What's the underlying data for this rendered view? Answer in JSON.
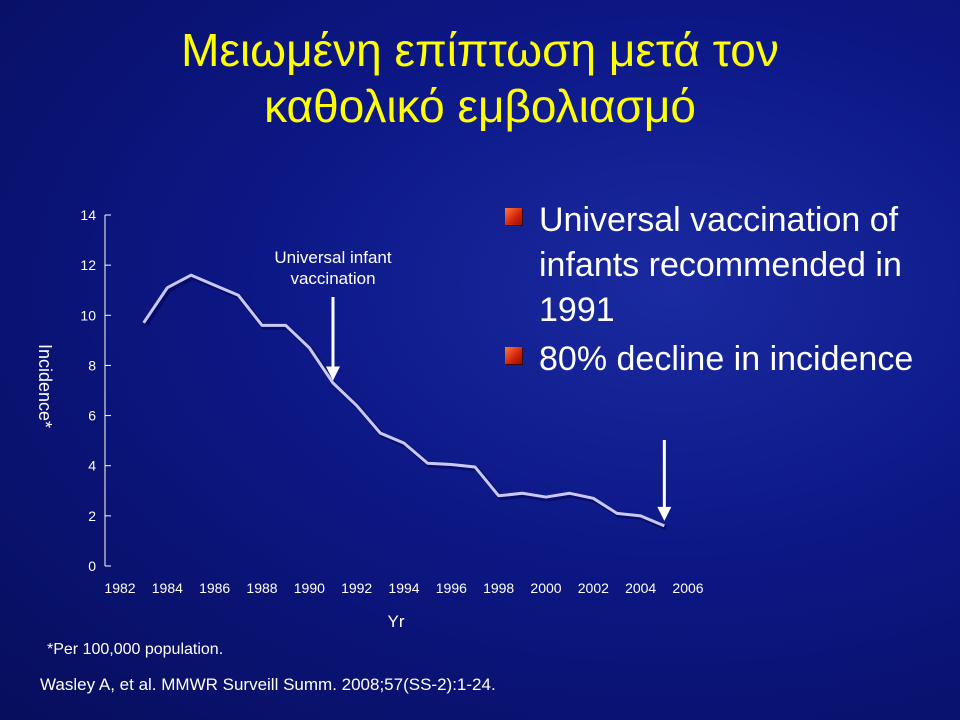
{
  "title_lines": [
    "Μειωμένη επίπτωση μετά τον",
    "καθολικό εμβολιασμό"
  ],
  "bullets": [
    "Universal vaccination of infants recommended in 1991",
    "80% decline in incidence"
  ],
  "footnote": "*Per 100,000 population.",
  "citation": "Wasley A, et al. MMWR Surveill Summ. 2008;57(SS-2):1-24.",
  "colors": {
    "title": "#ffff00",
    "text": "#ffffff",
    "background": "#0c1785",
    "bullet": "#d0220a"
  },
  "chart_data": {
    "type": "line",
    "title": "",
    "xlabel": "Yr",
    "ylabel": "Incidence*",
    "xlim": [
      1982,
      2006
    ],
    "ylim": [
      0,
      14
    ],
    "yticks": [
      0,
      2,
      4,
      6,
      8,
      10,
      12,
      14
    ],
    "xticks": [
      1982,
      1984,
      1986,
      1988,
      1990,
      1992,
      1994,
      1996,
      1998,
      2000,
      2002,
      2004,
      2006
    ],
    "grid": false,
    "series": [
      {
        "color": "#c8c8ff",
        "x": [
          1983,
          1984,
          1985,
          1986,
          1987,
          1988,
          1989,
          1990,
          1991,
          1992,
          1993,
          1994,
          1995,
          1996,
          1997,
          1998,
          1999,
          2000,
          2001,
          2002,
          2003,
          2004,
          2005
        ],
        "y": [
          9.7,
          11.1,
          11.6,
          11.2,
          10.8,
          9.6,
          9.6,
          8.7,
          7.3,
          6.4,
          5.3,
          4.9,
          4.1,
          4.05,
          3.95,
          2.8,
          2.9,
          2.75,
          2.9,
          2.7,
          2.1,
          2.0,
          1.6
        ]
      }
    ],
    "annotations": [
      {
        "text": "Universal infant vaccination",
        "x": 1991,
        "y_arrow_tip": 7.4
      },
      {
        "text": "",
        "x": 2005,
        "y_arrow_tip": 1.8
      }
    ]
  }
}
